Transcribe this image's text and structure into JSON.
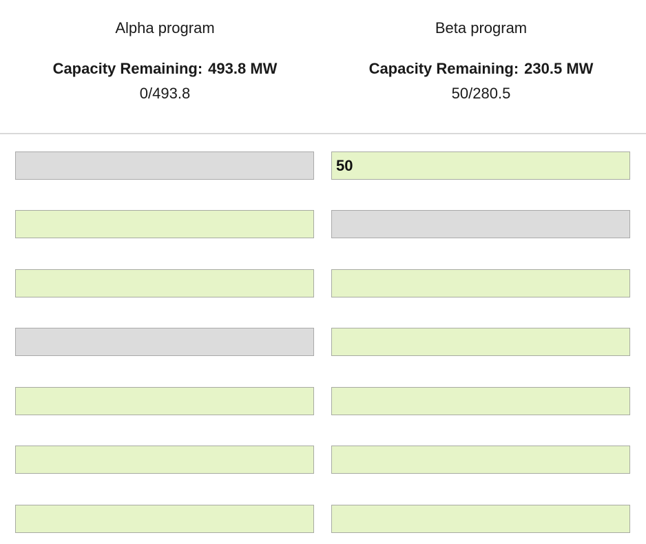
{
  "programs": {
    "alpha": {
      "name": "Alpha program",
      "capacity_label": "Capacity Remaining:",
      "capacity_value": "493.8 MW",
      "ratio": "0/493.8"
    },
    "beta": {
      "name": "Beta program",
      "capacity_label": "Capacity Remaining:",
      "capacity_value": "230.5 MW",
      "ratio": "50/280.5"
    }
  },
  "rows": [
    {
      "alpha": {
        "value": "",
        "disabled": true
      },
      "beta": {
        "value": "50",
        "disabled": false
      }
    },
    {
      "alpha": {
        "value": "",
        "disabled": false
      },
      "beta": {
        "value": "",
        "disabled": true
      }
    },
    {
      "alpha": {
        "value": "",
        "disabled": false
      },
      "beta": {
        "value": "",
        "disabled": false
      }
    },
    {
      "alpha": {
        "value": "",
        "disabled": true
      },
      "beta": {
        "value": "",
        "disabled": false
      }
    },
    {
      "alpha": {
        "value": "",
        "disabled": false
      },
      "beta": {
        "value": "",
        "disabled": false
      }
    },
    {
      "alpha": {
        "value": "",
        "disabled": false
      },
      "beta": {
        "value": "",
        "disabled": false
      }
    },
    {
      "alpha": {
        "value": "",
        "disabled": false
      },
      "beta": {
        "value": "",
        "disabled": false
      }
    }
  ],
  "colors": {
    "enabled_field": "#e6f4c8",
    "disabled_field": "#dcdcdc",
    "divider": "#d9d9d9"
  }
}
